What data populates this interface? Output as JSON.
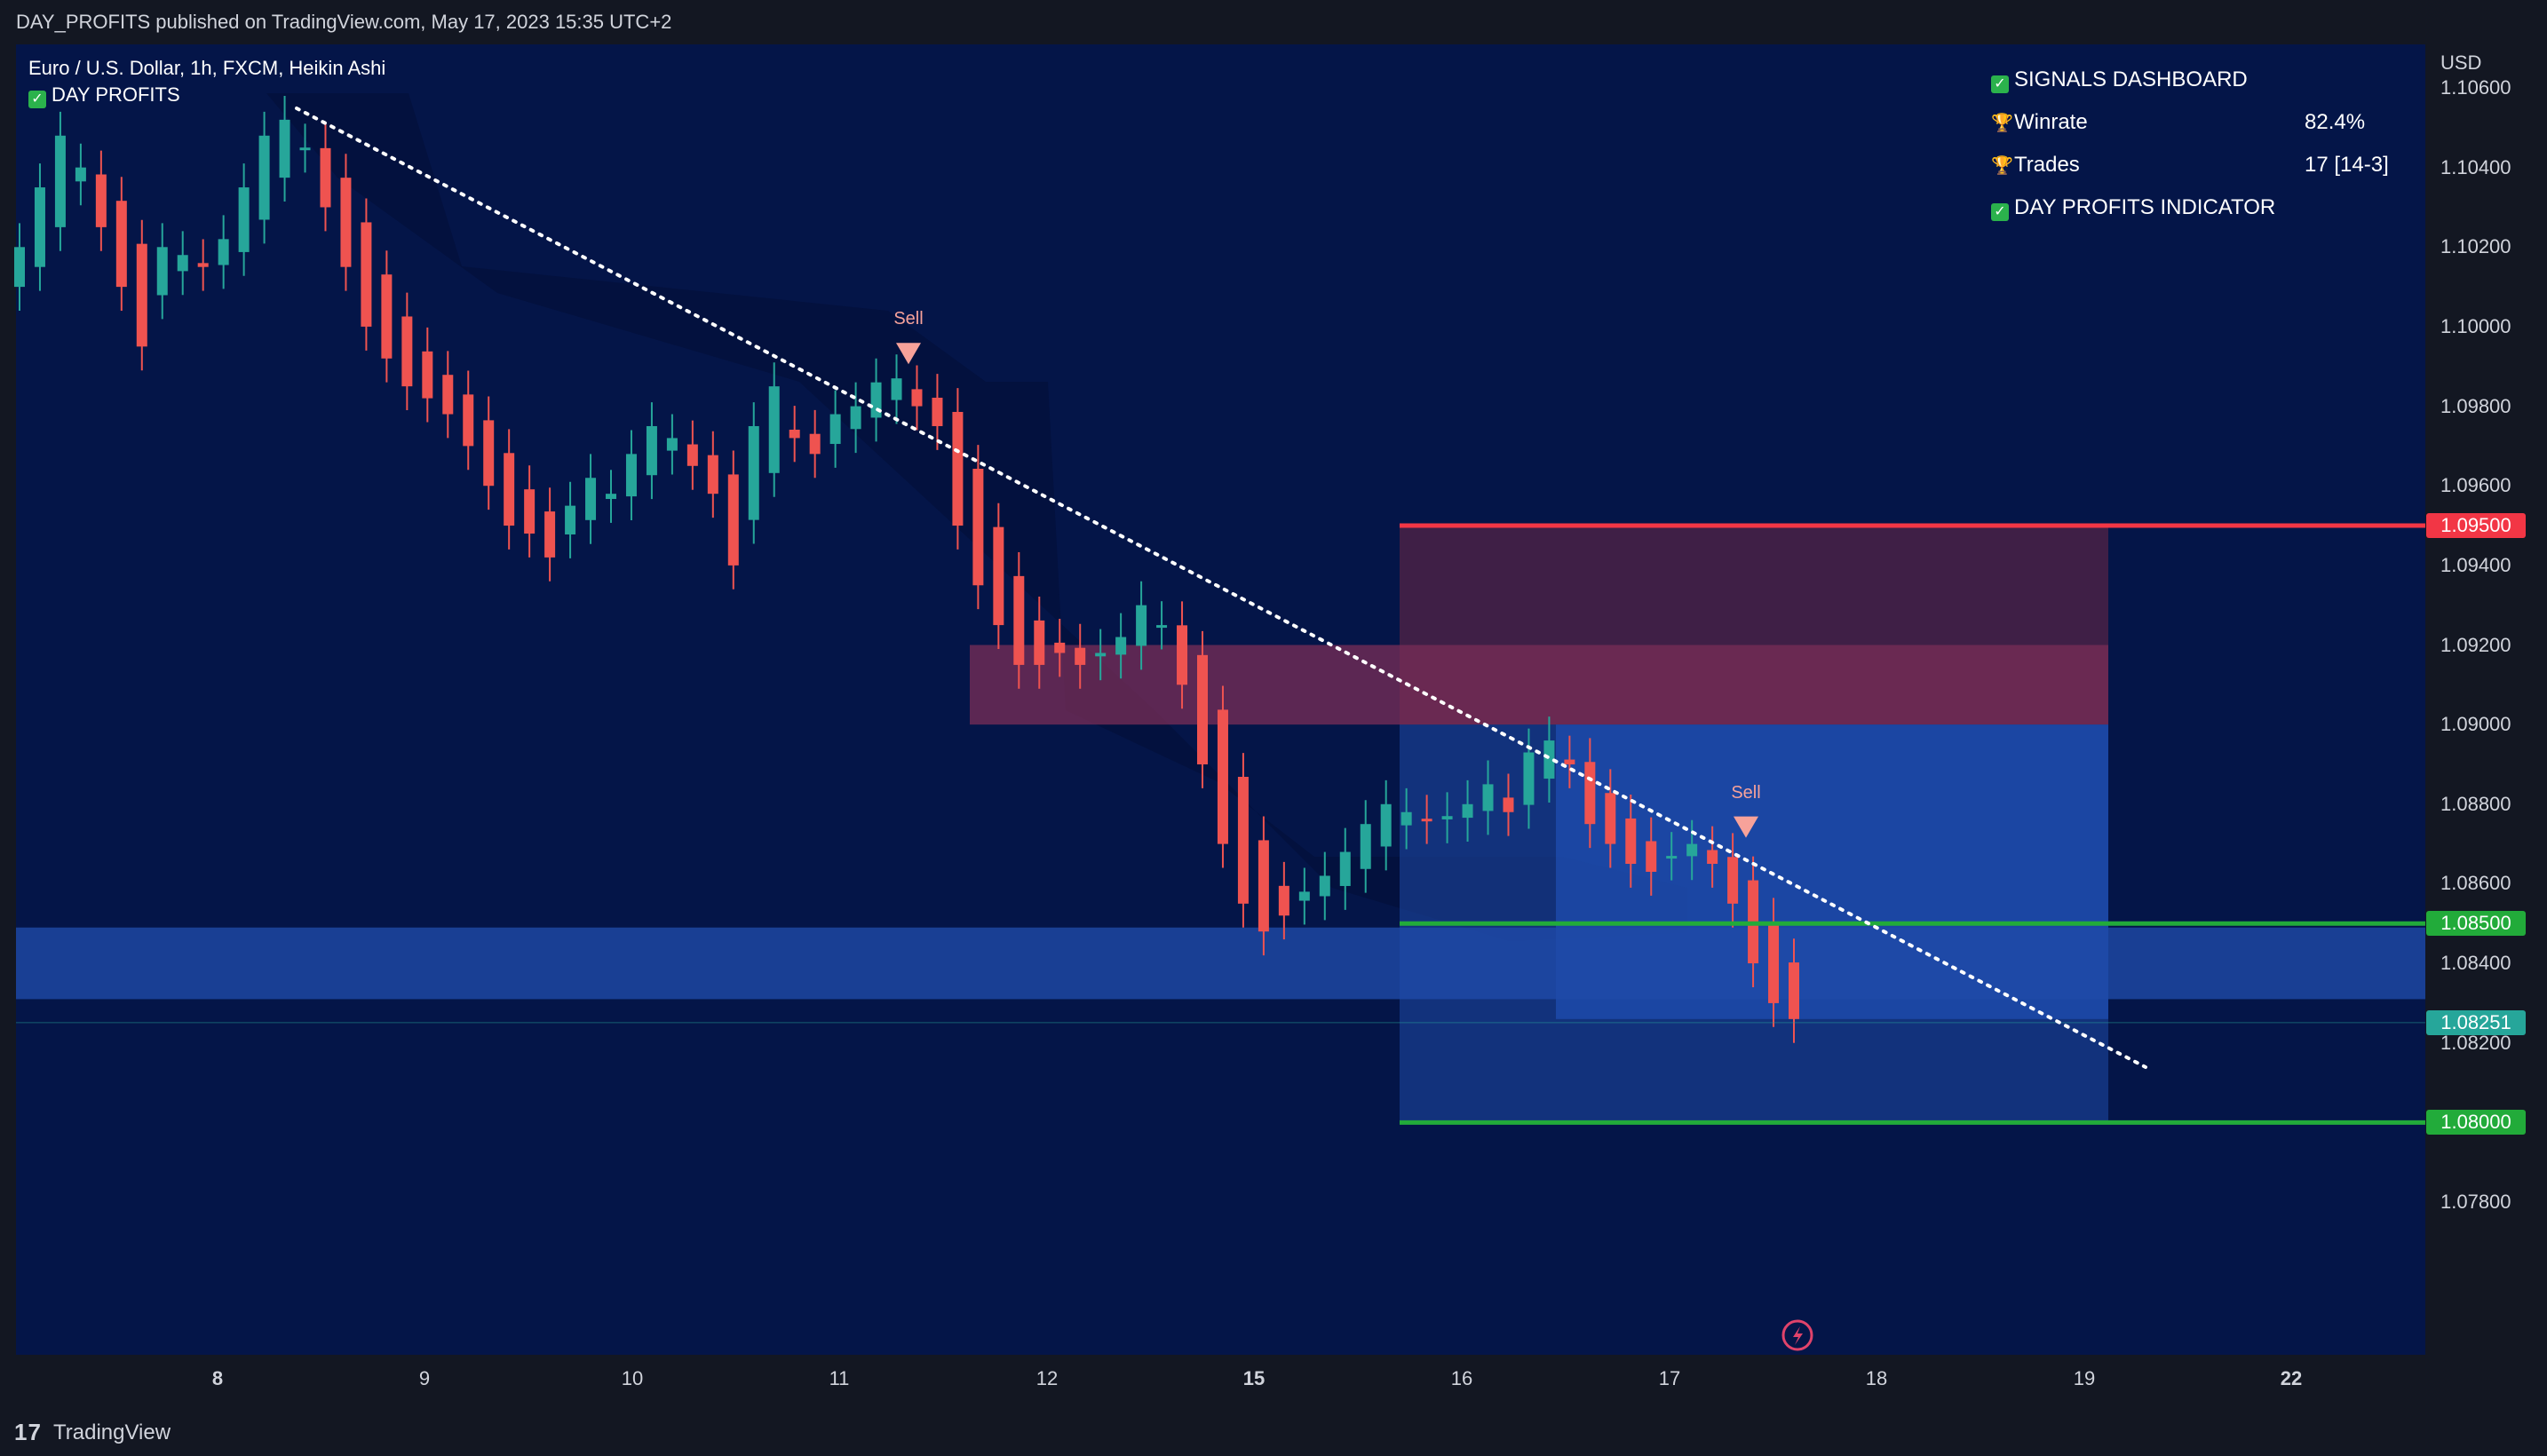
{
  "header": {
    "published": "DAY_PROFITS published on TradingView.com, May 17, 2023 15:35 UTC+2"
  },
  "footer": {
    "brand": "TradingView"
  },
  "symbol": {
    "title": "Euro / U.S. Dollar, 1h, FXCM, Heikin Ashi",
    "indicator": "DAY PROFITS"
  },
  "dashboard": {
    "title": "SIGNALS DASHBOARD",
    "winrate_label": "Winrate",
    "winrate_value": "82.4%",
    "trades_label": "Trades",
    "trades_value": "17 [14-3]",
    "footer": "DAY PROFITS INDICATOR"
  },
  "colors": {
    "background": "#041548",
    "up": "#26a69a",
    "down": "#ef5350",
    "stop": "#f23645",
    "target": "#22ab3a"
  },
  "chart_data": {
    "type": "candlestick",
    "currency": "USD",
    "y_ticks": [
      "1.10600",
      "1.10400",
      "1.10200",
      "1.10000",
      "1.09800",
      "1.09600",
      "1.09400",
      "1.09200",
      "1.09000",
      "1.08800",
      "1.08600",
      "1.08400",
      "1.08200",
      "1.07800"
    ],
    "x_ticks": [
      "8",
      "9",
      "10",
      "11",
      "12",
      "15",
      "16",
      "17",
      "18",
      "19",
      "22"
    ],
    "price_tags": [
      {
        "label": "1.09500",
        "value": 1.095,
        "color": "#f23645"
      },
      {
        "label": "1.08500",
        "value": 1.085,
        "color": "#22ab3a"
      },
      {
        "label": "1.08251",
        "value": 1.08251,
        "color": "#26a69a"
      },
      {
        "label": "1.08000",
        "value": 1.08,
        "color": "#22ab3a"
      }
    ],
    "signals": [
      {
        "label": "Sell",
        "x": "11",
        "price": 1.0987
      },
      {
        "label": "Sell",
        "x": "17",
        "price": 1.0868
      }
    ],
    "levels": {
      "stop": 1.095,
      "tp1": 1.085,
      "tp2": 1.08,
      "last": 1.08251
    },
    "ylim": [
      1.077,
      1.1068
    ],
    "candle_closes": [
      1.102,
      1.1035,
      1.1048,
      1.104,
      1.1025,
      1.101,
      1.0995,
      1.102,
      1.1018,
      1.1015,
      1.1022,
      1.1035,
      1.1048,
      1.1052,
      1.1045,
      1.103,
      1.1015,
      1.1,
      1.0992,
      1.0985,
      1.0982,
      1.0978,
      1.097,
      1.096,
      1.095,
      1.0948,
      1.0942,
      1.0955,
      1.0962,
      1.0958,
      1.0968,
      1.0975,
      1.0972,
      1.0965,
      1.0958,
      1.094,
      1.0975,
      1.0985,
      1.0972,
      1.0968,
      1.0978,
      1.098,
      1.0986,
      1.0987,
      1.098,
      1.0975,
      1.095,
      1.0935,
      1.0925,
      1.0915,
      1.0915,
      1.0918,
      1.0915,
      1.0918,
      1.0922,
      1.093,
      1.0925,
      1.091,
      1.089,
      1.087,
      1.0855,
      1.0848,
      1.0852,
      1.0858,
      1.0862,
      1.0868,
      1.0875,
      1.088,
      1.0878,
      1.0876,
      1.0877,
      1.088,
      1.0885,
      1.0878,
      1.0893,
      1.0896,
      1.089,
      1.0875,
      1.087,
      1.0865,
      1.0863,
      1.0867,
      1.087,
      1.0865,
      1.0855,
      1.084,
      1.083,
      1.0826
    ]
  }
}
